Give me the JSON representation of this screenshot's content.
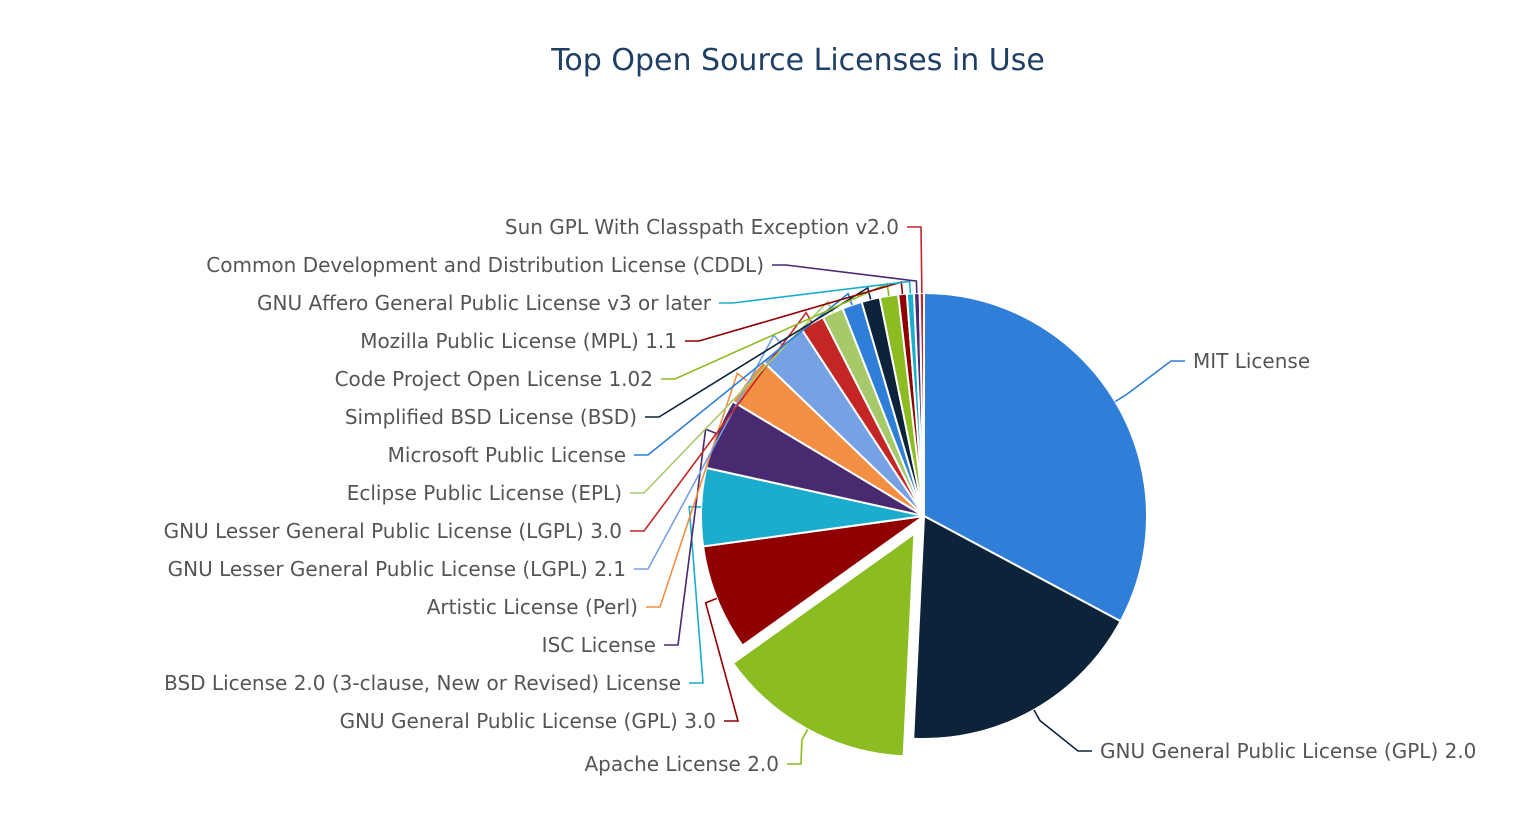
{
  "chart_data": {
    "type": "pie",
    "title": "Top Open Source Licenses in Use",
    "exploded": "Apache License 2.0",
    "slices": [
      {
        "label": "MIT License",
        "value": 32.0,
        "color": "#2f7ed8"
      },
      {
        "label": "GNU General Public License (GPL) 2.0",
        "value": 17.5,
        "color": "#0d233a"
      },
      {
        "label": "Apache License 2.0",
        "value": 14.0,
        "color": "#8bbc21"
      },
      {
        "label": "GNU General Public License (GPL) 3.0",
        "value": 7.5,
        "color": "#910000"
      },
      {
        "label": "BSD License 2.0 (3-clause, New or Revised) License",
        "value": 5.5,
        "color": "#1aadce"
      },
      {
        "label": "ISC License",
        "value": 5.0,
        "color": "#492970"
      },
      {
        "label": "Artistic License (Perl)",
        "value": 3.5,
        "color": "#f28f43"
      },
      {
        "label": "GNU Lesser General Public License (LGPL) 2.1",
        "value": 3.5,
        "color": "#77a1e5"
      },
      {
        "label": "GNU Lesser General Public License (LGPL) 3.0",
        "value": 1.7,
        "color": "#c42525"
      },
      {
        "label": "Eclipse Public License (EPL)",
        "value": 1.5,
        "color": "#a6c96a"
      },
      {
        "label": "Microsoft Public License",
        "value": 1.4,
        "color": "#2f7ed8"
      },
      {
        "label": "Simplified BSD License (BSD)",
        "value": 1.3,
        "color": "#0d233a"
      },
      {
        "label": "Code Project Open License 1.02",
        "value": 1.3,
        "color": "#8bbc21"
      },
      {
        "label": "Mozilla Public License (MPL) 1.1",
        "value": 0.6,
        "color": "#910000"
      },
      {
        "label": "GNU Affero General Public License v3 or later",
        "value": 0.5,
        "color": "#1aadce"
      },
      {
        "label": "Common Development and Distribution License (CDDL)",
        "value": 0.4,
        "color": "#492970"
      },
      {
        "label": "Sun GPL With Classpath Exception v2.0",
        "value": 0.3,
        "color": "#c42525"
      }
    ]
  }
}
